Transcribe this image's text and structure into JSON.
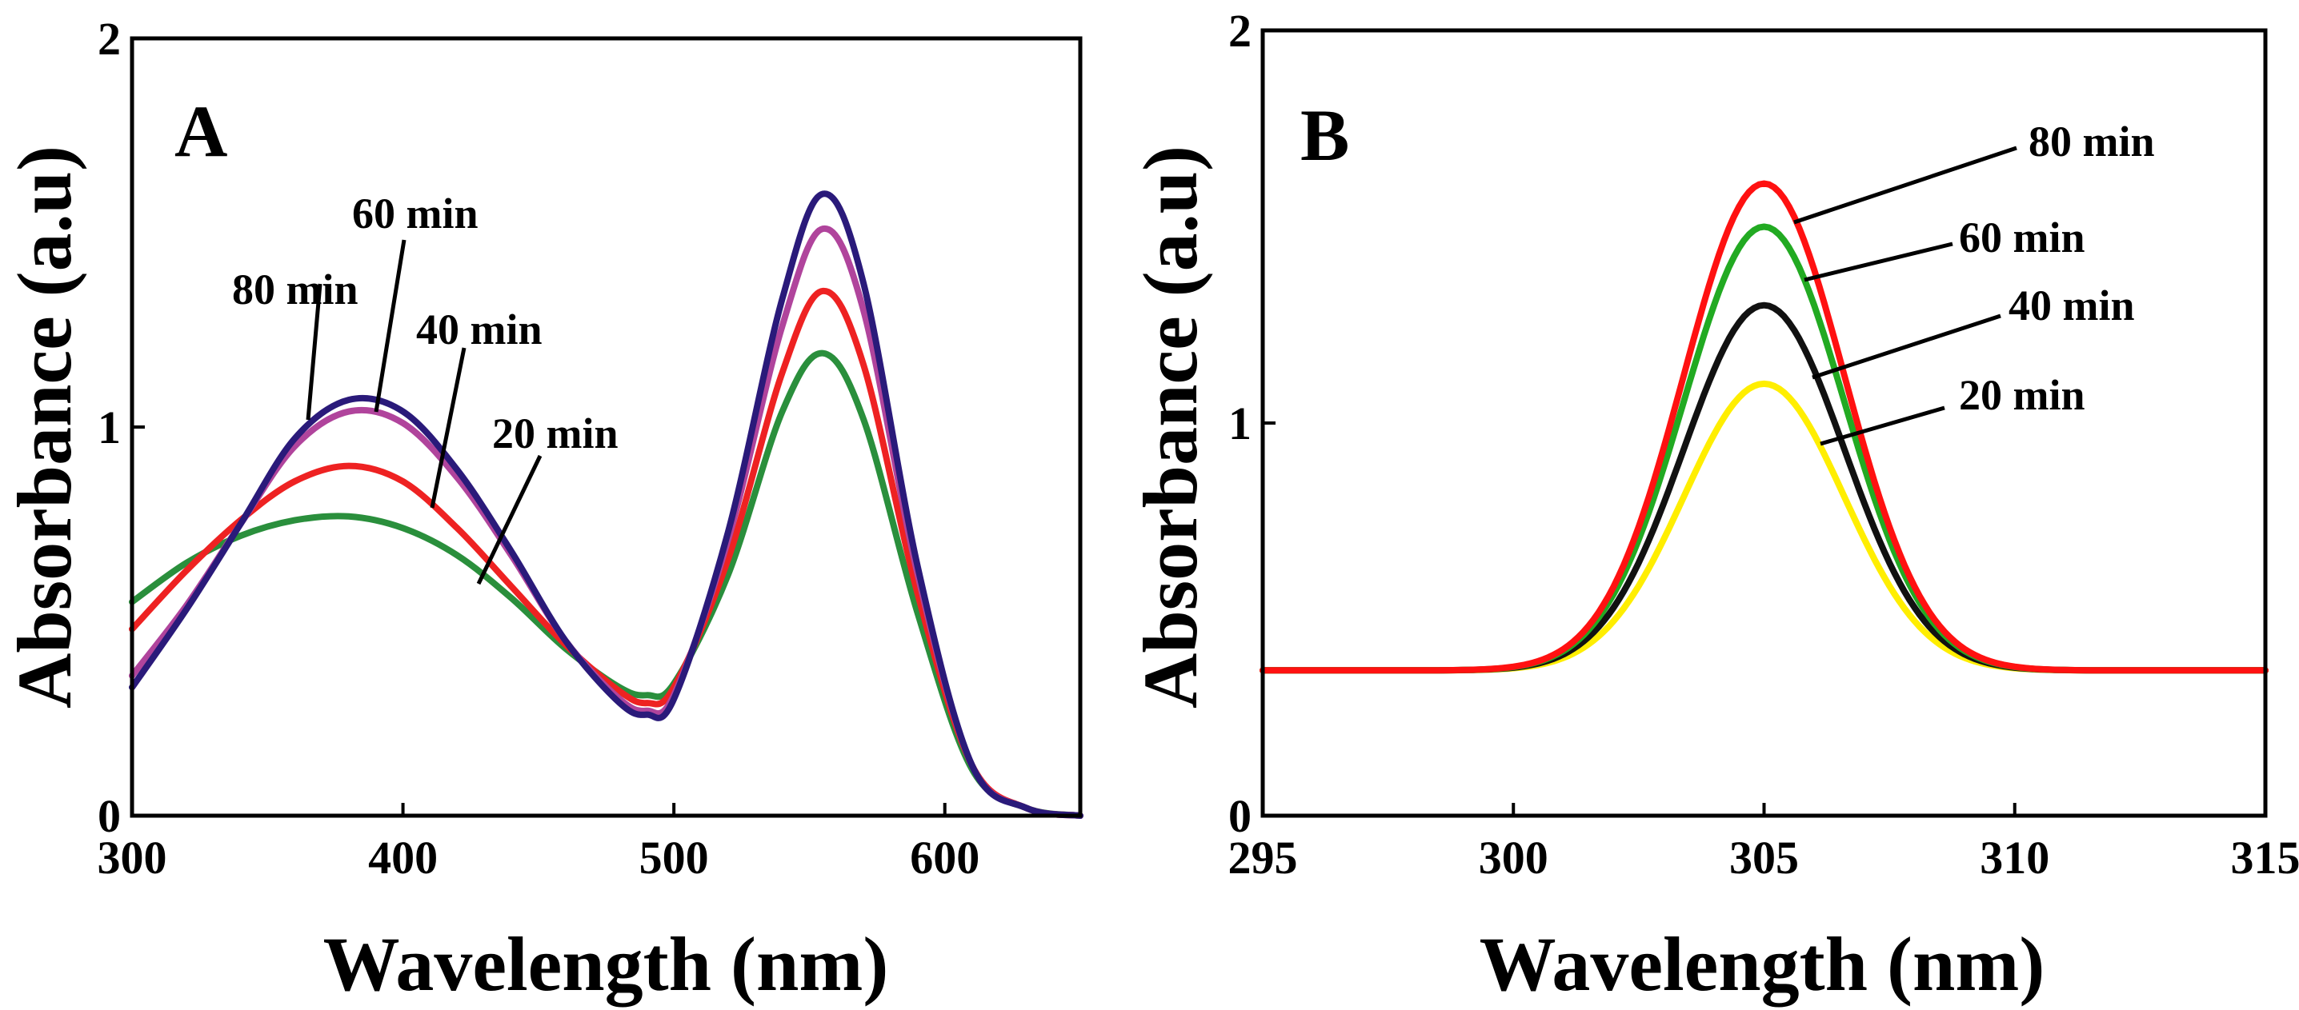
{
  "chart_data": [
    {
      "type": "line",
      "panel": "A",
      "title": "",
      "xlabel": "Wavelength (nm)",
      "ylabel": "Absorbance (a.u)",
      "xlim": [
        300,
        650
      ],
      "ylim": [
        0,
        2
      ],
      "xticks": [
        300,
        400,
        500,
        600
      ],
      "yticks": [
        0,
        1,
        2
      ],
      "x": [
        300,
        320,
        340,
        360,
        380,
        400,
        420,
        440,
        460,
        480,
        490,
        500,
        520,
        540,
        555,
        570,
        590,
        610,
        630,
        650
      ],
      "series": [
        {
          "name": "20 min",
          "color": "#2a8f3c",
          "values": [
            0.55,
            0.65,
            0.72,
            0.76,
            0.77,
            0.74,
            0.67,
            0.56,
            0.43,
            0.33,
            0.31,
            0.34,
            0.62,
            1.04,
            1.19,
            1.02,
            0.52,
            0.12,
            0.02,
            0.0
          ]
        },
        {
          "name": "40 min",
          "color": "#ee2222",
          "values": [
            0.48,
            0.63,
            0.76,
            0.86,
            0.9,
            0.86,
            0.74,
            0.59,
            0.44,
            0.32,
            0.29,
            0.33,
            0.66,
            1.14,
            1.35,
            1.16,
            0.57,
            0.13,
            0.02,
            0.0
          ]
        },
        {
          "name": "60 min",
          "color": "#b0449c",
          "values": [
            0.36,
            0.54,
            0.75,
            0.95,
            1.04,
            1.01,
            0.87,
            0.67,
            0.45,
            0.3,
            0.27,
            0.31,
            0.71,
            1.26,
            1.51,
            1.3,
            0.62,
            0.13,
            0.02,
            0.0
          ]
        },
        {
          "name": "80 min",
          "color": "#2a1a7a",
          "values": [
            0.33,
            0.53,
            0.75,
            0.97,
            1.07,
            1.04,
            0.89,
            0.68,
            0.45,
            0.29,
            0.26,
            0.3,
            0.73,
            1.33,
            1.6,
            1.37,
            0.64,
            0.13,
            0.02,
            0.0
          ]
        }
      ],
      "annotations": [
        "80 min",
        "60 min",
        "40 min",
        "20 min"
      ]
    },
    {
      "type": "line",
      "panel": "B",
      "title": "",
      "xlabel": "Wavelength (nm)",
      "ylabel": "Absorbance (a.u)",
      "xlim": [
        295,
        315
      ],
      "ylim": [
        0,
        2
      ],
      "xticks": [
        295,
        300,
        305,
        310,
        315
      ],
      "yticks": [
        0,
        1,
        2
      ],
      "baseline": 0.37,
      "center": 305,
      "sigma": 1.6,
      "series": [
        {
          "name": "20 min",
          "color": "#ffee00",
          "peak": 1.1
        },
        {
          "name": "40 min",
          "color": "#111111",
          "peak": 1.3
        },
        {
          "name": "60 min",
          "color": "#22aa22",
          "peak": 1.5
        },
        {
          "name": "80 min",
          "color": "#ff1111",
          "peak": 1.61
        }
      ],
      "annotations": [
        "80 min",
        "60 min",
        "40 min",
        "20 min"
      ]
    }
  ]
}
